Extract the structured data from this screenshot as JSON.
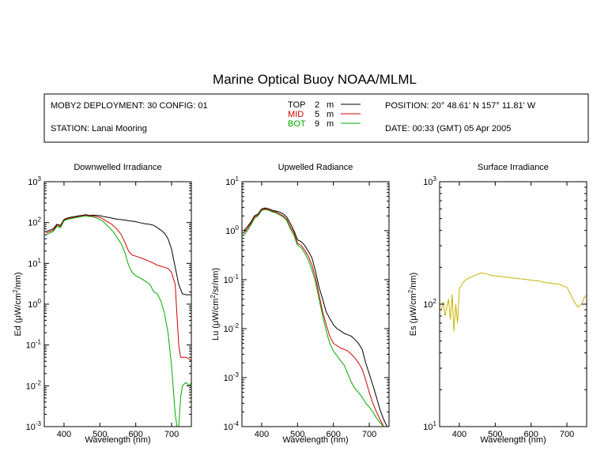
{
  "title": "Marine Optical Buoy NOAA/MLML",
  "info": {
    "deployment": "MOBY2 DEPLOYMENT: 30 CONFIG: 01",
    "station": "STATION: Lanai Mooring",
    "position": "POSITION: 20° 48.61' N   157° 11.81' W",
    "date": "DATE: 00:33 (GMT) 05 Apr 2005",
    "depths": [
      {
        "label": "TOP",
        "value": "2",
        "unit": "m",
        "color": "#000000"
      },
      {
        "label": "MID",
        "value": "5",
        "unit": "m",
        "color": "#d00000"
      },
      {
        "label": "BOT",
        "value": "9",
        "unit": "m",
        "color": "#00aa00"
      }
    ]
  },
  "colors": {
    "top": "#000000",
    "mid": "#d00000",
    "bot": "#00aa00",
    "surface": "#c8b400"
  },
  "chart_data": [
    {
      "type": "line",
      "title": "Downwelled Irradiance",
      "xlabel": "Wavelength (nm)",
      "ylabel_parts": [
        "Ed  (μW/cm",
        "2",
        "/nm)"
      ],
      "xlim": [
        345,
        755
      ],
      "ylim": [
        0.001,
        1000
      ],
      "yscale": "log",
      "xticks": [
        400,
        500,
        600,
        700
      ],
      "yticks_exp": [
        -3,
        -2,
        -1,
        0,
        1,
        2,
        3
      ],
      "series": [
        {
          "color": "#000000",
          "x": [
            350,
            360,
            370,
            380,
            390,
            400,
            410,
            420,
            430,
            440,
            450,
            460,
            470,
            480,
            490,
            500,
            510,
            520,
            530,
            540,
            550,
            560,
            570,
            580,
            590,
            600,
            610,
            620,
            630,
            640,
            650,
            660,
            670,
            680,
            690,
            700,
            710,
            720,
            730,
            740,
            750,
            755
          ],
          "y": [
            60,
            65,
            70,
            90,
            85,
            120,
            130,
            135,
            140,
            145,
            150,
            155,
            150,
            152,
            150,
            148,
            140,
            135,
            130,
            125,
            120,
            118,
            115,
            110,
            108,
            105,
            100,
            95,
            92,
            90,
            85,
            75,
            65,
            55,
            40,
            22,
            8,
            3,
            1.8,
            1.7,
            1.7,
            1.7
          ]
        },
        {
          "color": "#d00000",
          "x": [
            350,
            360,
            370,
            380,
            390,
            400,
            410,
            420,
            430,
            440,
            450,
            460,
            470,
            480,
            490,
            500,
            510,
            520,
            530,
            540,
            550,
            560,
            570,
            580,
            590,
            600,
            610,
            620,
            630,
            640,
            650,
            660,
            670,
            680,
            690,
            700,
            710,
            715,
            720,
            725,
            730,
            740,
            750,
            755
          ],
          "y": [
            55,
            60,
            65,
            85,
            80,
            115,
            125,
            130,
            135,
            140,
            145,
            150,
            145,
            145,
            140,
            135,
            120,
            105,
            95,
            80,
            65,
            50,
            32,
            20,
            16,
            15,
            14,
            13,
            12,
            11,
            10,
            9,
            8.5,
            8,
            7.5,
            6,
            3,
            0.5,
            0.1,
            0.05,
            0.05,
            0.05,
            0.045,
            0.04
          ]
        },
        {
          "color": "#00aa00",
          "x": [
            350,
            360,
            370,
            380,
            390,
            400,
            410,
            420,
            430,
            440,
            450,
            460,
            470,
            480,
            490,
            500,
            510,
            520,
            530,
            540,
            550,
            560,
            570,
            580,
            590,
            600,
            610,
            620,
            630,
            640,
            650,
            660,
            670,
            680,
            690,
            700,
            710,
            715,
            720,
            725,
            730,
            740,
            750,
            755
          ],
          "y": [
            50,
            55,
            60,
            80,
            75,
            110,
            120,
            125,
            130,
            135,
            140,
            145,
            140,
            138,
            130,
            120,
            105,
            85,
            70,
            55,
            40,
            30,
            18,
            9,
            6,
            5,
            4.5,
            4,
            3.5,
            3,
            2,
            1.8,
            1.2,
            0.6,
            0.2,
            0.03,
            0.002,
            0.0008,
            0.0008,
            0.005,
            0.01,
            0.012,
            0.01,
            0.012
          ]
        }
      ]
    },
    {
      "type": "line",
      "title": "Upwelled Radiance",
      "xlabel": "Wavelength (nm)",
      "ylabel_parts": [
        "Lu  (μW/cm",
        "2",
        "/sr/nm)"
      ],
      "xlim": [
        345,
        755
      ],
      "ylim": [
        0.0001,
        10
      ],
      "yscale": "log",
      "xticks": [
        400,
        500,
        600,
        700
      ],
      "yticks_exp": [
        -4,
        -3,
        -2,
        -1,
        0,
        1
      ],
      "series": [
        {
          "color": "#000000",
          "x": [
            350,
            360,
            370,
            380,
            390,
            400,
            410,
            420,
            430,
            440,
            450,
            460,
            470,
            480,
            490,
            500,
            510,
            520,
            530,
            540,
            550,
            560,
            570,
            580,
            590,
            600,
            610,
            620,
            630,
            640,
            650,
            660,
            670,
            680,
            690,
            700,
            710,
            720,
            730,
            740,
            750
          ],
          "y": [
            1.0,
            1.2,
            1.5,
            2.0,
            2.2,
            2.8,
            2.9,
            2.8,
            2.6,
            2.5,
            2.4,
            2.2,
            1.9,
            1.4,
            1.0,
            0.65,
            0.6,
            0.5,
            0.38,
            0.28,
            0.15,
            0.07,
            0.04,
            0.022,
            0.016,
            0.012,
            0.01,
            0.009,
            0.008,
            0.0075,
            0.007,
            0.006,
            0.005,
            0.0038,
            0.002,
            0.0012,
            0.0007,
            0.0004,
            0.00022,
            0.00014,
            0.0001
          ]
        },
        {
          "color": "#d00000",
          "x": [
            350,
            360,
            370,
            380,
            390,
            400,
            410,
            420,
            430,
            440,
            450,
            460,
            470,
            480,
            490,
            500,
            510,
            520,
            530,
            540,
            550,
            560,
            570,
            580,
            590,
            600,
            610,
            620,
            630,
            640,
            650,
            660,
            670,
            680,
            690,
            700,
            710,
            720,
            730,
            740,
            750
          ],
          "y": [
            0.9,
            1.1,
            1.4,
            1.9,
            2.1,
            2.7,
            2.8,
            2.7,
            2.5,
            2.4,
            2.2,
            2.0,
            1.7,
            1.2,
            0.9,
            0.55,
            0.5,
            0.4,
            0.3,
            0.2,
            0.11,
            0.05,
            0.022,
            0.012,
            0.007,
            0.005,
            0.0045,
            0.004,
            0.0038,
            0.0035,
            0.003,
            0.0025,
            0.002,
            0.0015,
            0.0009,
            0.0005,
            0.0003,
            0.0002,
            0.00014,
            0.0001,
            0.0001
          ]
        },
        {
          "color": "#00aa00",
          "x": [
            350,
            360,
            370,
            380,
            390,
            400,
            410,
            420,
            430,
            440,
            450,
            460,
            470,
            480,
            490,
            500,
            510,
            520,
            530,
            540,
            550,
            560,
            570,
            580,
            590,
            600,
            610,
            620,
            630,
            640,
            650,
            660,
            670,
            680,
            690,
            700,
            710,
            720,
            730,
            740,
            750
          ],
          "y": [
            0.8,
            1.0,
            1.3,
            1.8,
            2.0,
            2.6,
            2.7,
            2.6,
            2.4,
            2.3,
            2.1,
            1.9,
            1.6,
            1.1,
            0.8,
            0.5,
            0.45,
            0.35,
            0.25,
            0.16,
            0.09,
            0.04,
            0.018,
            0.009,
            0.005,
            0.0035,
            0.0028,
            0.0022,
            0.0018,
            0.0012,
            0.0008,
            0.0006,
            0.0005,
            0.0004,
            0.0003,
            0.00025,
            0.0002,
            0.00015,
            0.00012,
            0.0001,
            0.0001
          ]
        }
      ]
    },
    {
      "type": "line",
      "title": "Surface Irradiance",
      "xlabel": "Wavelength (nm)",
      "ylabel_parts": [
        "Es  (μW/cm",
        "2",
        "/nm)"
      ],
      "xlim": [
        345,
        755
      ],
      "ylim": [
        10,
        1000
      ],
      "yscale": "log",
      "xticks": [
        400,
        500,
        600,
        700
      ],
      "yticks_exp": [
        1,
        2,
        3
      ],
      "series": [
        {
          "color": "#c8b400",
          "x": [
            350,
            355,
            360,
            365,
            370,
            375,
            380,
            385,
            390,
            395,
            400,
            405,
            410,
            420,
            430,
            440,
            450,
            460,
            470,
            480,
            490,
            500,
            520,
            540,
            560,
            580,
            600,
            620,
            640,
            660,
            680,
            690,
            700,
            710,
            720,
            730,
            740,
            750,
            755
          ],
          "y": [
            90,
            105,
            80,
            95,
            110,
            75,
            120,
            60,
            100,
            70,
            135,
            140,
            150,
            160,
            165,
            170,
            175,
            180,
            178,
            175,
            172,
            170,
            168,
            165,
            162,
            160,
            157,
            155,
            150,
            148,
            145,
            140,
            138,
            120,
            105,
            95,
            100,
            115,
            118
          ]
        }
      ]
    }
  ]
}
